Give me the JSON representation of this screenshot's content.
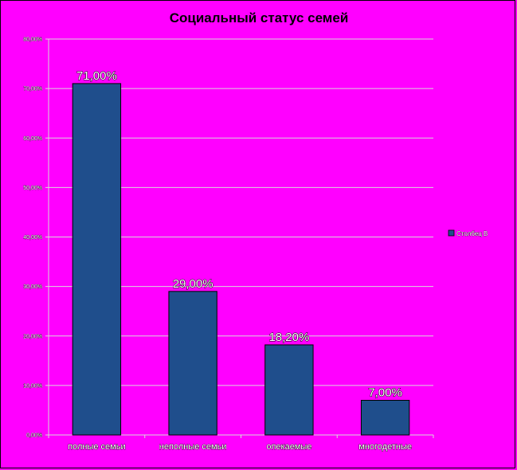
{
  "chart_data": {
    "type": "bar",
    "title": "Социальный статус семей",
    "categories": [
      "полные семьи",
      "неполные семьи",
      "опекаемые",
      "многодетные"
    ],
    "series": [
      {
        "name": "Столбец B",
        "values": [
          71.0,
          29.0,
          18.2,
          7.0
        ],
        "labels": [
          "71,00%",
          "29,00%",
          "18,20%",
          "7,00%"
        ]
      }
    ],
    "ylim": [
      0,
      80
    ],
    "yticks": [
      0,
      10,
      20,
      30,
      40,
      50,
      60,
      70,
      80
    ],
    "ytick_labels": [
      "0,00%",
      "10,00%",
      "20,00%",
      "30,00%",
      "40,00%",
      "50,00%",
      "60,00%",
      "70,00%",
      "80,00%"
    ],
    "grid": true,
    "legend_position": "right",
    "colors": {
      "background": "#ff00ff",
      "bar": "#1f4e8c",
      "bar_border": "#000000",
      "grid": "#d9d9d9"
    }
  }
}
